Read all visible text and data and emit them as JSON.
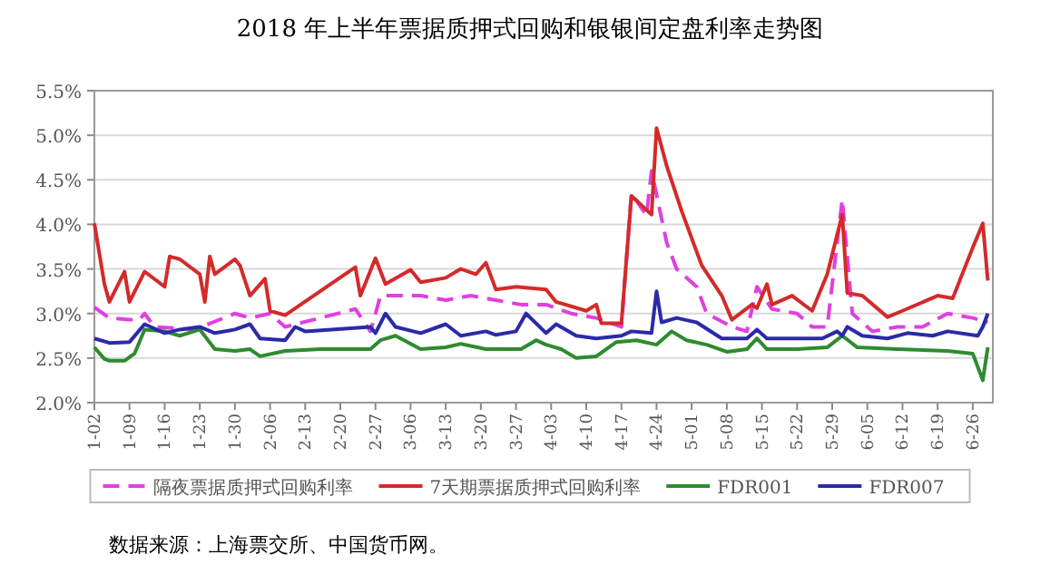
{
  "chart_data": {
    "type": "line",
    "title": "2018 年上半年票据质押式回购和银银间定盘利率走势图",
    "annotations": [
      "数据来源：上海票交所、中国货币网。"
    ],
    "xlim": [
      "--01-02",
      "--06-30"
    ],
    "xticks": [
      {
        "value": "--01-02",
        "label": "1-02"
      },
      {
        "value": "--01-09",
        "label": "1-09"
      },
      {
        "value": "--01-16",
        "label": "1-16"
      },
      {
        "value": "--01-23",
        "label": "1-23"
      },
      {
        "value": "--01-30",
        "label": "1-30"
      },
      {
        "value": "--02-06",
        "label": "2-06"
      },
      {
        "value": "--02-13",
        "label": "2-13"
      },
      {
        "value": "--02-20",
        "label": "2-20"
      },
      {
        "value": "--02-27",
        "label": "2-27"
      },
      {
        "value": "--03-06",
        "label": "3-06"
      },
      {
        "value": "--03-13",
        "label": "3-13"
      },
      {
        "value": "--03-20",
        "label": "3-20"
      },
      {
        "value": "--03-27",
        "label": "3-27"
      },
      {
        "value": "--04-03",
        "label": "4-03"
      },
      {
        "value": "--04-10",
        "label": "4-10"
      },
      {
        "value": "--04-17",
        "label": "4-17"
      },
      {
        "value": "--04-24",
        "label": "4-24"
      },
      {
        "value": "--05-01",
        "label": "5-01"
      },
      {
        "value": "--05-08",
        "label": "5-08"
      },
      {
        "value": "--05-15",
        "label": "5-15"
      },
      {
        "value": "--05-22",
        "label": "5-22"
      },
      {
        "value": "--05-29",
        "label": "5-29"
      },
      {
        "value": "--06-05",
        "label": "6-05"
      },
      {
        "value": "--06-12",
        "label": "6-12"
      },
      {
        "value": "--06-19",
        "label": "6-19"
      },
      {
        "value": "--06-26",
        "label": "6-26"
      }
    ],
    "ylim": [
      2.0,
      5.5
    ],
    "yticks": [
      {
        "value": 2.0,
        "label": "2.0%"
      },
      {
        "value": 2.5,
        "label": "2.5%"
      },
      {
        "value": 3.0,
        "label": "3.0%"
      },
      {
        "value": 3.5,
        "label": "3.5%"
      },
      {
        "value": 4.0,
        "label": "4.0%"
      },
      {
        "value": 4.5,
        "label": "4.5%"
      },
      {
        "value": 5.0,
        "label": "5.0%"
      },
      {
        "value": 5.5,
        "label": "5.5%"
      }
    ],
    "grid": "y",
    "legend": "bottom",
    "series": [
      {
        "name": "隔夜票据质押式回购利率",
        "color": "#e040e0",
        "line_style": "dashed",
        "x": [
          "--01-02",
          "--01-05",
          "--01-09",
          "--01-11",
          "--01-12",
          "--01-14",
          "--01-22",
          "--01-30",
          "--02-02",
          "--02-06",
          "--02-09",
          "--02-23",
          "--02-26",
          "--02-28",
          "--03-08",
          "--03-13",
          "--03-18",
          "--03-23",
          "--03-28",
          "--04-02",
          "--04-07",
          "--04-12",
          "--04-17",
          "--04-19",
          "--04-22",
          "--04-23",
          "--04-26",
          "--04-28",
          "--05-02",
          "--05-04",
          "--05-09",
          "--05-12",
          "--05-14",
          "--05-17",
          "--05-22",
          "--05-25",
          "--05-28",
          "--05-31",
          "--06-02",
          "--06-06",
          "--06-11",
          "--06-16",
          "--06-21",
          "--06-26",
          "--06-29"
        ],
        "values": [
          3.07,
          2.95,
          2.93,
          2.93,
          3.0,
          2.85,
          2.82,
          3.0,
          2.95,
          3.0,
          2.85,
          3.05,
          2.8,
          3.2,
          3.2,
          3.15,
          3.2,
          3.15,
          3.1,
          3.1,
          3.0,
          2.95,
          2.85,
          4.35,
          4.1,
          4.6,
          3.8,
          3.5,
          3.3,
          3.0,
          2.85,
          2.8,
          3.3,
          3.05,
          3.0,
          2.85,
          2.85,
          4.28,
          3.0,
          2.8,
          2.85,
          2.85,
          3.0,
          2.95,
          2.9
        ]
      },
      {
        "name": "7天期票据质押式回购利率",
        "color": "#d42a2a",
        "x": [
          "--01-02",
          "--01-04",
          "--01-05",
          "--01-08",
          "--01-09",
          "--01-12",
          "--01-16",
          "--01-17",
          "--01-19",
          "--01-23",
          "--01-24",
          "--01-25",
          "--01-26",
          "--01-30",
          "--01-31",
          "--02-02",
          "--02-05",
          "--02-06",
          "--02-09",
          "--02-23",
          "--02-24",
          "--02-27",
          "--03-01",
          "--03-06",
          "--03-08",
          "--03-13",
          "--03-16",
          "--03-19",
          "--03-21",
          "--03-23",
          "--03-27",
          "--04-02",
          "--04-04",
          "--04-10",
          "--04-12",
          "--04-13",
          "--04-17",
          "--04-19",
          "--04-23",
          "--04-24",
          "--04-26",
          "--04-29",
          "--05-03",
          "--05-07",
          "--05-09",
          "--05-13",
          "--05-14",
          "--05-16",
          "--05-17",
          "--05-21",
          "--05-25",
          "--05-28",
          "--05-31",
          "--06-01",
          "--06-04",
          "--06-09",
          "--06-12",
          "--06-19",
          "--06-22",
          "--06-26",
          "--06-28",
          "--06-29"
        ],
        "values": [
          4.01,
          3.33,
          3.13,
          3.47,
          3.13,
          3.47,
          3.3,
          3.64,
          3.61,
          3.44,
          3.13,
          3.64,
          3.44,
          3.61,
          3.54,
          3.2,
          3.39,
          3.03,
          2.98,
          3.52,
          3.2,
          3.62,
          3.33,
          3.49,
          3.35,
          3.4,
          3.5,
          3.44,
          3.57,
          3.27,
          3.3,
          3.27,
          3.13,
          3.03,
          3.1,
          2.89,
          2.89,
          4.32,
          4.11,
          5.08,
          4.66,
          4.15,
          3.54,
          3.2,
          2.93,
          3.1,
          3.06,
          3.33,
          3.1,
          3.2,
          3.03,
          3.44,
          4.11,
          3.23,
          3.2,
          2.96,
          3.03,
          3.2,
          3.17,
          3.74,
          4.01,
          3.37
        ]
      },
      {
        "name": "FDR001",
        "color": "#2e8b2e",
        "x": [
          "--01-02",
          "--01-04",
          "--01-05",
          "--01-08",
          "--01-10",
          "--01-12",
          "--01-16",
          "--01-19",
          "--01-23",
          "--01-26",
          "--01-30",
          "--02-02",
          "--02-04",
          "--02-09",
          "--02-16",
          "--02-26",
          "--02-28",
          "--03-03",
          "--03-08",
          "--03-13",
          "--03-16",
          "--03-21",
          "--03-28",
          "--03-31",
          "--04-02",
          "--04-05",
          "--04-08",
          "--04-12",
          "--04-16",
          "--04-20",
          "--04-24",
          "--04-27",
          "--04-30",
          "--05-04",
          "--05-08",
          "--05-12",
          "--05-14",
          "--05-16",
          "--05-22",
          "--05-28",
          "--05-31",
          "--06-03",
          "--06-11",
          "--06-21",
          "--06-26",
          "--06-28",
          "--06-29"
        ],
        "values": [
          2.62,
          2.49,
          2.47,
          2.47,
          2.55,
          2.82,
          2.8,
          2.75,
          2.82,
          2.6,
          2.58,
          2.6,
          2.52,
          2.58,
          2.6,
          2.6,
          2.7,
          2.75,
          2.6,
          2.62,
          2.66,
          2.6,
          2.6,
          2.7,
          2.65,
          2.6,
          2.5,
          2.52,
          2.68,
          2.7,
          2.65,
          2.8,
          2.7,
          2.65,
          2.57,
          2.6,
          2.72,
          2.6,
          2.6,
          2.62,
          2.75,
          2.62,
          2.6,
          2.58,
          2.55,
          2.25,
          2.62
        ]
      },
      {
        "name": "FDR007",
        "color": "#2a2aa8",
        "x": [
          "--01-02",
          "--01-05",
          "--01-09",
          "--01-12",
          "--01-16",
          "--01-19",
          "--01-23",
          "--01-26",
          "--01-30",
          "--02-02",
          "--02-04",
          "--02-09",
          "--02-11",
          "--02-13",
          "--02-26",
          "--02-27",
          "--03-01",
          "--03-03",
          "--03-08",
          "--03-13",
          "--03-16",
          "--03-21",
          "--03-23",
          "--03-27",
          "--03-29",
          "--04-02",
          "--04-04",
          "--04-08",
          "--04-12",
          "--04-17",
          "--04-19",
          "--04-23",
          "--04-24",
          "--04-25",
          "--04-28",
          "--05-02",
          "--05-07",
          "--05-12",
          "--05-14",
          "--05-16",
          "--05-27",
          "--05-30",
          "--05-31",
          "--06-01",
          "--06-04",
          "--06-09",
          "--06-13",
          "--06-18",
          "--06-21",
          "--06-27",
          "--06-28",
          "--06-29"
        ],
        "values": [
          2.72,
          2.67,
          2.68,
          2.88,
          2.78,
          2.82,
          2.85,
          2.78,
          2.82,
          2.88,
          2.72,
          2.7,
          2.85,
          2.8,
          2.85,
          2.78,
          3.0,
          2.85,
          2.78,
          2.88,
          2.75,
          2.8,
          2.76,
          2.8,
          3.0,
          2.78,
          2.88,
          2.75,
          2.72,
          2.75,
          2.8,
          2.78,
          3.25,
          2.9,
          2.95,
          2.9,
          2.72,
          2.72,
          2.82,
          2.72,
          2.72,
          2.8,
          2.75,
          2.85,
          2.75,
          2.72,
          2.78,
          2.75,
          2.8,
          2.75,
          2.85,
          3.0
        ]
      }
    ]
  }
}
